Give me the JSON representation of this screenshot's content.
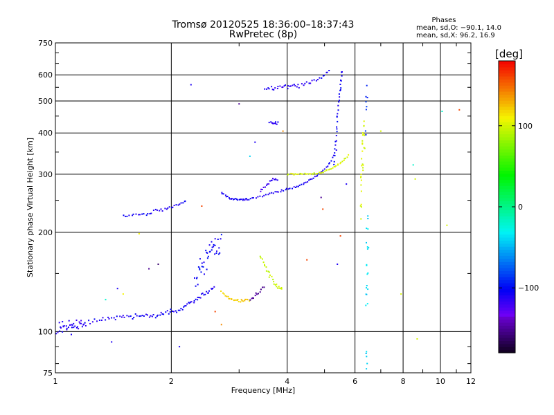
{
  "chart_data": {
    "type": "scatter",
    "title": "Tromsø 20120525 18:36:00–18:37:43",
    "subtitle": "RwPretec (8p)",
    "xlabel": "Frequency [MHz]",
    "ylabel": "Stationary phase Virtual Height [km]",
    "x_scale": "log",
    "y_scale": "log",
    "xlim": [
      1,
      12
    ],
    "ylim": [
      75,
      750
    ],
    "x_ticks": [
      1,
      2,
      4,
      6,
      8,
      10,
      12
    ],
    "y_ticks": [
      75,
      100,
      200,
      300,
      400,
      500,
      600,
      750
    ],
    "grid": true,
    "phases_box": {
      "title": "Phases",
      "line1": "mean, sd,O: −90.1, 14.0",
      "line2": "mean, sd,X:  96.2, 16.9"
    },
    "colorbar": {
      "label": "[deg]",
      "range": [
        -180,
        180
      ],
      "ticks": [
        -100,
        0,
        100
      ],
      "tick_labels": [
        "−100",
        "0",
        "100"
      ]
    },
    "traces": [
      {
        "x": [
          1.0,
          1.05,
          1.1,
          1.15,
          1.2,
          1.3,
          1.4,
          1.5,
          1.6,
          1.7,
          1.8,
          1.9,
          2.0,
          2.1,
          2.2,
          2.3,
          2.4,
          2.5,
          2.6
        ],
        "y": [
          100,
          102,
          103,
          104,
          106,
          108,
          110,
          110,
          111,
          112,
          112,
          113,
          115,
          116,
          120,
          124,
          128,
          132,
          136
        ],
        "phase": -110,
        "jitter": 2,
        "density": 6
      },
      {
        "x": [
          1.02,
          1.05,
          1.1,
          1.15,
          1.2
        ],
        "y": [
          104,
          106,
          105,
          107,
          106
        ],
        "phase": -115,
        "jitter": 3,
        "density": 3
      },
      {
        "x": [
          2.3,
          2.4,
          2.5,
          2.6,
          2.7
        ],
        "y": [
          145,
          158,
          170,
          180,
          190
        ],
        "phase": -105,
        "jitter": 14,
        "density": 10
      },
      {
        "x": [
          2.7,
          2.8,
          2.9,
          3.0,
          3.1,
          3.2
        ],
        "y": [
          132,
          127,
          125,
          124,
          124,
          124
        ],
        "phase": 120,
        "jitter": 1.2,
        "density": 5
      },
      {
        "x": [
          3.2,
          3.3,
          3.4,
          3.5
        ],
        "y": [
          124,
          128,
          132,
          137
        ],
        "phase": -150,
        "jitter": 2,
        "density": 4
      },
      {
        "x": [
          3.4,
          3.5,
          3.6,
          3.7,
          3.8,
          3.9
        ],
        "y": [
          168,
          158,
          148,
          140,
          136,
          135
        ],
        "phase": 95,
        "jitter": 2,
        "density": 5
      },
      {
        "x": [
          1.5,
          1.6,
          1.7,
          1.8
        ],
        "y": [
          224,
          226,
          226,
          228
        ],
        "phase": -105,
        "jitter": 1.5,
        "density": 5
      },
      {
        "x": [
          1.8,
          1.9,
          2.0,
          2.1,
          2.2
        ],
        "y": [
          232,
          234,
          238,
          244,
          250
        ],
        "phase": -110,
        "jitter": 2,
        "density": 5
      },
      {
        "x": [
          2.7,
          2.8,
          2.9,
          3.0
        ],
        "y": [
          262,
          256,
          252,
          251
        ],
        "phase": -110,
        "jitter": 2,
        "density": 5
      },
      {
        "x": [
          3.0,
          3.1,
          3.2,
          3.4,
          3.6,
          3.8,
          4.0,
          4.2,
          4.4,
          4.6,
          4.8,
          5.0,
          5.2,
          5.4
        ],
        "y": [
          250,
          251,
          252,
          256,
          262,
          266,
          270,
          274,
          280,
          288,
          298,
          310,
          330,
          360
        ],
        "phase": -110,
        "jitter": 1.5,
        "density": 5
      },
      {
        "x": [
          3.4,
          3.5,
          3.6,
          3.7,
          3.8
        ],
        "y": [
          266,
          276,
          285,
          290,
          288
        ],
        "phase": -120,
        "jitter": 3,
        "density": 4
      },
      {
        "x": [
          4.0,
          4.2,
          4.4,
          4.6,
          4.8,
          5.0,
          5.2,
          5.4,
          5.6,
          5.8
        ],
        "y": [
          300,
          300,
          300,
          300,
          302,
          306,
          312,
          320,
          330,
          345
        ],
        "phase": 100,
        "jitter": 1.5,
        "density": 5
      },
      {
        "x": [
          5.3,
          5.35,
          5.4,
          5.45,
          5.5,
          5.55
        ],
        "y": [
          320,
          380,
          440,
          500,
          560,
          630
        ],
        "phase": -105,
        "jitter": 8,
        "density": 6
      },
      {
        "x": [
          3.6,
          3.7,
          3.8
        ],
        "y": [
          425,
          430,
          428
        ],
        "phase": -115,
        "jitter": 6,
        "density": 5
      },
      {
        "x": [
          3.5,
          3.7,
          3.9,
          4.1,
          4.3,
          4.6,
          4.9,
          5.2
        ],
        "y": [
          545,
          548,
          550,
          552,
          556,
          570,
          590,
          615
        ],
        "phase": -112,
        "jitter": 8,
        "density": 6
      },
      {
        "x": [
          6.2,
          6.25,
          6.3,
          6.35
        ],
        "y": [
          260,
          300,
          350,
          400
        ],
        "phase": 100,
        "jitter": 60,
        "density": 10
      },
      {
        "x": [
          6.4,
          6.45,
          6.5
        ],
        "y": [
          100,
          150,
          200
        ],
        "phase": -40,
        "jitter": 60,
        "density": 12
      },
      {
        "x": [
          6.4,
          6.45
        ],
        "y": [
          400,
          550
        ],
        "phase": -90,
        "jitter": 60,
        "density": 8
      }
    ],
    "isolated_points": [
      {
        "x": 1.1,
        "y": 98,
        "phase": -110
      },
      {
        "x": 1.4,
        "y": 93,
        "phase": -110
      },
      {
        "x": 1.35,
        "y": 125,
        "phase": -20
      },
      {
        "x": 1.45,
        "y": 135,
        "phase": -110
      },
      {
        "x": 1.5,
        "y": 130,
        "phase": 110
      },
      {
        "x": 1.65,
        "y": 198,
        "phase": 110
      },
      {
        "x": 1.75,
        "y": 155,
        "phase": -150
      },
      {
        "x": 1.85,
        "y": 160,
        "phase": -160
      },
      {
        "x": 2.1,
        "y": 90,
        "phase": -110
      },
      {
        "x": 2.25,
        "y": 560,
        "phase": -110
      },
      {
        "x": 2.4,
        "y": 240,
        "phase": 160
      },
      {
        "x": 2.6,
        "y": 115,
        "phase": 160
      },
      {
        "x": 2.7,
        "y": 105,
        "phase": 140
      },
      {
        "x": 3.0,
        "y": 490,
        "phase": -150
      },
      {
        "x": 3.2,
        "y": 340,
        "phase": -40
      },
      {
        "x": 3.3,
        "y": 375,
        "phase": -110
      },
      {
        "x": 3.9,
        "y": 405,
        "phase": 140
      },
      {
        "x": 4.5,
        "y": 165,
        "phase": 160
      },
      {
        "x": 4.9,
        "y": 255,
        "phase": -150
      },
      {
        "x": 4.95,
        "y": 235,
        "phase": 160
      },
      {
        "x": 5.4,
        "y": 160,
        "phase": -110
      },
      {
        "x": 5.5,
        "y": 195,
        "phase": 160
      },
      {
        "x": 5.7,
        "y": 280,
        "phase": -110
      },
      {
        "x": 7.0,
        "y": 405,
        "phase": 100
      },
      {
        "x": 7.9,
        "y": 130,
        "phase": 100
      },
      {
        "x": 8.5,
        "y": 320,
        "phase": -20
      },
      {
        "x": 8.6,
        "y": 290,
        "phase": 100
      },
      {
        "x": 8.7,
        "y": 95,
        "phase": 100
      },
      {
        "x": 10.1,
        "y": 465,
        "phase": -20
      },
      {
        "x": 10.4,
        "y": 210,
        "phase": 100
      },
      {
        "x": 11.2,
        "y": 470,
        "phase": 160
      }
    ]
  }
}
